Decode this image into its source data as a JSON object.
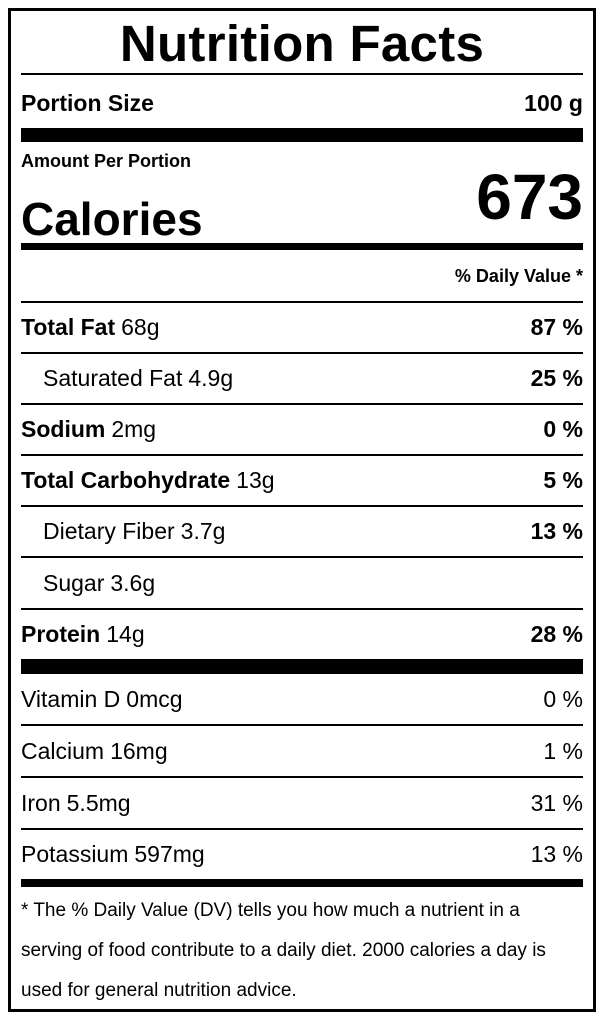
{
  "title": "Nutrition Facts",
  "portion": {
    "label": "Portion Size",
    "value": "100 g"
  },
  "amount_per_portion": "Amount Per Portion",
  "calories": {
    "label": "Calories",
    "value": "673"
  },
  "daily_value_header": "% Daily Value *",
  "nutrients": [
    {
      "name": "Total Fat",
      "amount": "68g",
      "dv": "87 %"
    },
    {
      "name": "Saturated Fat",
      "amount": "4.9g",
      "dv": "25 %"
    },
    {
      "name": "Sodium",
      "amount": "2mg",
      "dv": "0 %"
    },
    {
      "name": "Total Carbohydrate",
      "amount": "13g",
      "dv": "5 %"
    },
    {
      "name": "Dietary Fiber",
      "amount": "3.7g",
      "dv": "13 %"
    },
    {
      "name": "Sugar",
      "amount": "3.6g",
      "dv": ""
    },
    {
      "name": "Protein",
      "amount": "14g",
      "dv": "28 %"
    }
  ],
  "vitamins": [
    {
      "name": "Vitamin D",
      "amount": "0mcg",
      "dv": "0 %"
    },
    {
      "name": "Calcium",
      "amount": "16mg",
      "dv": "1 %"
    },
    {
      "name": "Iron",
      "amount": "5.5mg",
      "dv": "31 %"
    },
    {
      "name": "Potassium",
      "amount": "597mg",
      "dv": "13 %"
    }
  ],
  "footnote": "* The % Daily Value (DV) tells you how much a nutrient in a serving of food contribute to a daily diet. 2000 calories a day is used for general nutrition advice."
}
